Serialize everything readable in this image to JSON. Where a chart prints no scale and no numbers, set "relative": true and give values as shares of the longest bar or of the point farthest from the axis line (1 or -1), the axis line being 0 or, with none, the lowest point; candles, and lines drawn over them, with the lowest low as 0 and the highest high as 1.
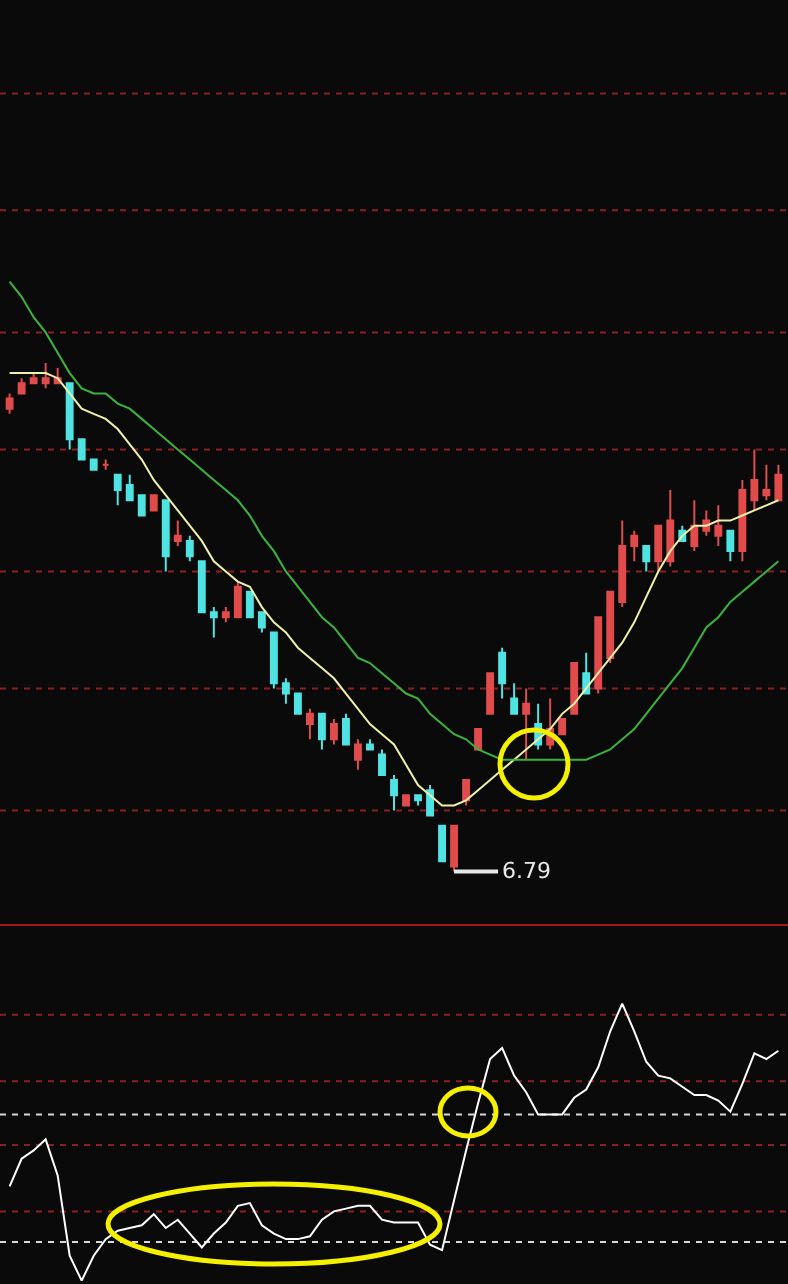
{
  "chart_data": [
    {
      "type": "candlestick",
      "relative": true,
      "categories": [
        null,
        null,
        null,
        null,
        null,
        null,
        null,
        null,
        null,
        null,
        null,
        null,
        null,
        null,
        null,
        null,
        null,
        null,
        null,
        null,
        null,
        null,
        null,
        null,
        null,
        null,
        null,
        null,
        null,
        null,
        null,
        null,
        null,
        null,
        null,
        null,
        null,
        null,
        null,
        null,
        null,
        null,
        null,
        null,
        null,
        null,
        null,
        null,
        null,
        null,
        null,
        null,
        null,
        null,
        null,
        null,
        null,
        null,
        null,
        null,
        null,
        null,
        null,
        null,
        null
      ],
      "series": [
        {
          "ohlc": [
            [
              0.91,
              0.94,
              0.9,
              0.93
            ],
            [
              0.94,
              0.97,
              0.94,
              0.96
            ],
            [
              0.96,
              0.98,
              0.96,
              0.97
            ],
            [
              0.96,
              1.0,
              0.95,
              0.97
            ],
            [
              0.96,
              0.99,
              0.96,
              0.97
            ],
            [
              0.96,
              0.96,
              0.83,
              0.85
            ],
            [
              0.85,
              0.85,
              0.81,
              0.81
            ],
            [
              0.81,
              0.81,
              0.79,
              0.79
            ],
            [
              0.8,
              0.81,
              0.79,
              0.8
            ],
            [
              0.78,
              0.78,
              0.72,
              0.75
            ],
            [
              0.76,
              0.78,
              0.73,
              0.73
            ],
            [
              0.74,
              0.74,
              0.7,
              0.7
            ],
            [
              0.71,
              0.74,
              0.71,
              0.74
            ],
            [
              0.73,
              0.73,
              0.59,
              0.62
            ],
            [
              0.65,
              0.69,
              0.64,
              0.66
            ],
            [
              0.65,
              0.66,
              0.61,
              0.62
            ],
            [
              0.61,
              0.61,
              0.51,
              0.51
            ],
            [
              0.51,
              0.52,
              0.46,
              0.5
            ],
            [
              0.5,
              0.52,
              0.49,
              0.51
            ],
            [
              0.5,
              0.57,
              0.5,
              0.56
            ],
            [
              0.55,
              0.55,
              0.5,
              0.5
            ],
            [
              0.51,
              0.51,
              0.47,
              0.48
            ],
            [
              0.47,
              0.47,
              0.36,
              0.37
            ],
            [
              0.37,
              0.38,
              0.33,
              0.35
            ],
            [
              0.35,
              0.35,
              0.31,
              0.31
            ],
            [
              0.29,
              0.32,
              0.26,
              0.31
            ],
            [
              0.31,
              0.31,
              0.24,
              0.26
            ],
            [
              0.26,
              0.3,
              0.25,
              0.29
            ],
            [
              0.3,
              0.31,
              0.25,
              0.25
            ],
            [
              0.22,
              0.26,
              0.2,
              0.25
            ],
            [
              0.25,
              0.26,
              0.24,
              0.24
            ],
            [
              0.23,
              0.24,
              0.19,
              0.19
            ],
            [
              0.18,
              0.19,
              0.12,
              0.15
            ],
            [
              0.13,
              0.15,
              0.13,
              0.15
            ],
            [
              0.15,
              0.15,
              0.13,
              0.14
            ],
            [
              0.16,
              0.17,
              0.11,
              0.11
            ],
            [
              0.09,
              0.09,
              0.02,
              0.02
            ],
            [
              0.01,
              0.09,
              0.0,
              0.09
            ],
            [
              0.14,
              0.18,
              0.13,
              0.18
            ],
            [
              0.24,
              0.28,
              0.24,
              0.28
            ],
            [
              0.31,
              0.39,
              0.31,
              0.39
            ],
            [
              0.43,
              0.44,
              0.34,
              0.37
            ],
            [
              0.34,
              0.37,
              0.31,
              0.31
            ],
            [
              0.31,
              0.36,
              0.22,
              0.33
            ],
            [
              0.29,
              0.33,
              0.24,
              0.25
            ],
            [
              0.25,
              0.34,
              0.24,
              0.28
            ],
            [
              0.27,
              0.3,
              0.27,
              0.3
            ],
            [
              0.31,
              0.41,
              0.31,
              0.41
            ],
            [
              0.39,
              0.43,
              0.35,
              0.35
            ],
            [
              0.36,
              0.5,
              0.35,
              0.5
            ],
            [
              0.42,
              0.55,
              0.41,
              0.55
            ],
            [
              0.53,
              0.69,
              0.52,
              0.64
            ],
            [
              0.64,
              0.67,
              0.61,
              0.66
            ],
            [
              0.64,
              0.64,
              0.59,
              0.61
            ],
            [
              0.61,
              0.68,
              0.59,
              0.68
            ],
            [
              0.61,
              0.75,
              0.6,
              0.69
            ],
            [
              0.67,
              0.68,
              0.65,
              0.65
            ],
            [
              0.64,
              0.73,
              0.63,
              0.68
            ],
            [
              0.67,
              0.71,
              0.66,
              0.69
            ],
            [
              0.66,
              0.72,
              0.64,
              0.68
            ],
            [
              0.67,
              0.67,
              0.61,
              0.63
            ],
            [
              0.63,
              0.77,
              0.61,
              0.75
            ],
            [
              0.73,
              0.83,
              0.71,
              0.77
            ],
            [
              0.74,
              0.8,
              0.73,
              0.75
            ],
            [
              0.73,
              0.8,
              0.73,
              0.78
            ]
          ],
          "colors": [
            "#e04b4b",
            "#e04b4b",
            "#e04b4b",
            "#e04b4b",
            "#e04b4b",
            "#4fe3e3",
            "#4fe3e3",
            "#4fe3e3",
            "#e04b4b",
            "#4fe3e3",
            "#4fe3e3",
            "#4fe3e3",
            "#e04b4b",
            "#4fe3e3",
            "#e04b4b",
            "#4fe3e3",
            "#4fe3e3",
            "#4fe3e3",
            "#e04b4b",
            "#e04b4b",
            "#4fe3e3",
            "#4fe3e3",
            "#4fe3e3",
            "#4fe3e3",
            "#4fe3e3",
            "#e04b4b",
            "#4fe3e3",
            "#e04b4b",
            "#4fe3e3",
            "#e04b4b",
            "#4fe3e3",
            "#4fe3e3",
            "#4fe3e3",
            "#e04b4b",
            "#4fe3e3",
            "#4fe3e3",
            "#4fe3e3",
            "#e04b4b",
            "#e04b4b",
            "#e04b4b",
            "#e04b4b",
            "#4fe3e3",
            "#4fe3e3",
            "#e04b4b",
            "#4fe3e3",
            "#e04b4b",
            "#e04b4b",
            "#e04b4b",
            "#4fe3e3",
            "#e04b4b",
            "#e04b4b",
            "#e04b4b",
            "#e04b4b",
            "#4fe3e3",
            "#e04b4b",
            "#e04b4b",
            "#4fe3e3",
            "#e04b4b",
            "#e04b4b",
            "#e04b4b",
            "#4fe3e3",
            "#e04b4b",
            "#e04b4b",
            "#e04b4b",
            "#e04b4b"
          ]
        },
        {
          "type": "line",
          "color": "#f0f0a8",
          "values": [
            0.98,
            0.98,
            0.98,
            0.98,
            0.97,
            0.94,
            0.91,
            0.9,
            0.89,
            0.87,
            0.84,
            0.81,
            0.77,
            0.74,
            0.71,
            0.68,
            0.65,
            0.61,
            0.59,
            0.57,
            0.56,
            0.52,
            0.49,
            0.47,
            0.44,
            0.42,
            0.4,
            0.38,
            0.35,
            0.32,
            0.29,
            0.27,
            0.25,
            0.21,
            0.17,
            0.15,
            0.13,
            0.13,
            0.14,
            0.16,
            0.18,
            0.2,
            0.22,
            0.24,
            0.26,
            0.28,
            0.31,
            0.33,
            0.36,
            0.39,
            0.42,
            0.45,
            0.49,
            0.54,
            0.59,
            0.63,
            0.66,
            0.68,
            0.68,
            0.69,
            0.69,
            0.7,
            0.71,
            0.72,
            0.73
          ]
        },
        {
          "type": "line",
          "color": "#3cb43c",
          "values": [
            1.16,
            1.13,
            1.09,
            1.06,
            1.02,
            0.98,
            0.95,
            0.94,
            0.94,
            0.92,
            0.91,
            0.89,
            0.87,
            0.85,
            0.83,
            0.81,
            0.79,
            0.77,
            0.75,
            0.73,
            0.7,
            0.66,
            0.63,
            0.59,
            0.56,
            0.53,
            0.5,
            0.48,
            0.45,
            0.42,
            0.41,
            0.39,
            0.37,
            0.35,
            0.34,
            0.31,
            0.29,
            0.27,
            0.26,
            0.24,
            0.23,
            0.22,
            0.22,
            0.22,
            0.22,
            0.22,
            0.22,
            0.22,
            0.22,
            0.23,
            0.24,
            0.26,
            0.28,
            0.31,
            0.34,
            0.37,
            0.4,
            0.44,
            0.48,
            0.5,
            0.53,
            0.55,
            0.57,
            0.59,
            0.61
          ]
        }
      ],
      "annotations": [
        "6.79"
      ],
      "ref_lines": [
        {
          "axis": "y",
          "value": 0.12,
          "color": "#8b2020",
          "line_style": "dotted"
        },
        {
          "axis": "y",
          "value": 0.36,
          "color": "#8b2020",
          "line_style": "dotted"
        },
        {
          "axis": "y",
          "value": 0.59,
          "color": "#8b2020",
          "line_style": "dotted"
        },
        {
          "axis": "y",
          "value": 0.83,
          "color": "#8b2020",
          "line_style": "dotted"
        },
        {
          "axis": "y",
          "value": 1.06,
          "color": "#8b2020",
          "line_style": "dotted"
        },
        {
          "axis": "y",
          "value": 1.3,
          "color": "#8b2020",
          "line_style": "dotted"
        },
        {
          "axis": "y",
          "value": 1.53,
          "color": "#8b2020",
          "line_style": "dotted"
        }
      ]
    },
    {
      "type": "line",
      "relative": true,
      "categories": [
        null,
        null,
        null,
        null,
        null,
        null,
        null,
        null,
        null,
        null,
        null,
        null,
        null,
        null,
        null,
        null,
        null,
        null,
        null,
        null,
        null,
        null,
        null,
        null,
        null,
        null,
        null,
        null,
        null,
        null,
        null,
        null,
        null,
        null,
        null,
        null,
        null,
        null,
        null,
        null,
        null,
        null,
        null,
        null,
        null,
        null,
        null,
        null,
        null,
        null,
        null,
        null,
        null,
        null,
        null,
        null,
        null,
        null,
        null,
        null,
        null,
        null,
        null,
        null,
        null
      ],
      "series": [
        {
          "color": "#ffffff",
          "values": [
            0.34,
            0.44,
            0.47,
            0.51,
            0.38,
            0.09,
            0.0,
            0.09,
            0.15,
            0.18,
            0.19,
            0.2,
            0.24,
            0.19,
            0.22,
            0.17,
            0.12,
            0.17,
            0.21,
            0.27,
            0.28,
            0.2,
            0.17,
            0.15,
            0.15,
            0.16,
            0.22,
            0.25,
            0.26,
            0.27,
            0.27,
            0.22,
            0.21,
            0.21,
            0.21,
            0.13,
            0.11,
            0.29,
            0.47,
            0.64,
            0.8,
            0.84,
            0.74,
            0.68,
            0.6,
            0.6,
            0.6,
            0.66,
            0.69,
            0.77,
            0.9,
            1.0,
            0.9,
            0.79,
            0.74,
            0.73,
            0.7,
            0.67,
            0.67,
            0.65,
            0.61,
            0.71,
            0.82,
            0.8,
            0.83
          ]
        }
      ],
      "ref_lines": [
        {
          "axis": "y",
          "value": 0.96,
          "color": "#8b2020",
          "line_style": "dotted"
        },
        {
          "axis": "y",
          "value": 0.72,
          "color": "#8b2020",
          "line_style": "dotted"
        },
        {
          "axis": "y",
          "value": 0.49,
          "color": "#8b2020",
          "line_style": "dotted"
        },
        {
          "axis": "y",
          "value": 0.25,
          "color": "#8b2020",
          "line_style": "dotted"
        },
        {
          "axis": "y",
          "value": 0.6,
          "color": "#d8d8d8",
          "line_style": "dotted"
        },
        {
          "axis": "y",
          "value": 0.14,
          "color": "#d8d8d8",
          "line_style": "dotted"
        }
      ]
    }
  ]
}
